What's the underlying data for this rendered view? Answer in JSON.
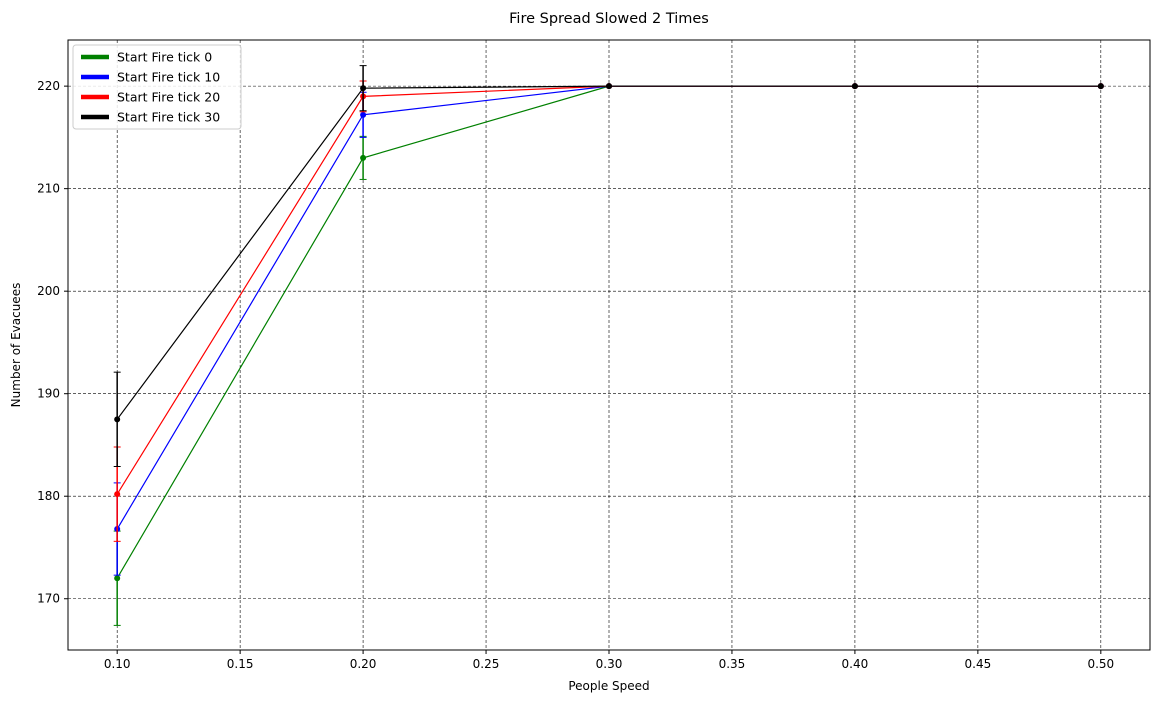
{
  "chart_data": {
    "type": "line",
    "title": "Fire Spread Slowed 2 Times",
    "xlabel": "People Speed",
    "ylabel": "Number of Evacuees",
    "xlim": [
      0.08,
      0.52
    ],
    "ylim": [
      165,
      224.5
    ],
    "xticks": [
      "0.10",
      "0.15",
      "0.20",
      "0.25",
      "0.30",
      "0.35",
      "0.40",
      "0.45",
      "0.50"
    ],
    "yticks": [
      "170",
      "180",
      "190",
      "200",
      "210",
      "220"
    ],
    "grid": true,
    "grid_style": "dashed",
    "legend_position": "top-left",
    "x": [
      0.1,
      0.2,
      0.3,
      0.4,
      0.5
    ],
    "series": [
      {
        "name": "Start Fire tick 0",
        "color": "#008000",
        "values": [
          172.0,
          213.0,
          220.0,
          220.0,
          220.0
        ],
        "errors": [
          4.6,
          2.1,
          0,
          0,
          0
        ]
      },
      {
        "name": "Start Fire tick 10",
        "color": "#0000ff",
        "values": [
          176.8,
          217.2,
          220.0,
          220.0,
          220.0
        ],
        "errors": [
          4.5,
          2.2,
          0,
          0,
          0
        ]
      },
      {
        "name": "Start Fire tick 20",
        "color": "#ff0000",
        "values": [
          180.2,
          219.0,
          220.0,
          220.0,
          220.0
        ],
        "errors": [
          4.6,
          1.5,
          0,
          0,
          0
        ]
      },
      {
        "name": "Start Fire tick 30",
        "color": "#000000",
        "values": [
          187.5,
          219.8,
          220.0,
          220.0,
          220.0
        ],
        "errors": [
          4.6,
          2.2,
          0,
          0,
          0
        ]
      }
    ]
  }
}
